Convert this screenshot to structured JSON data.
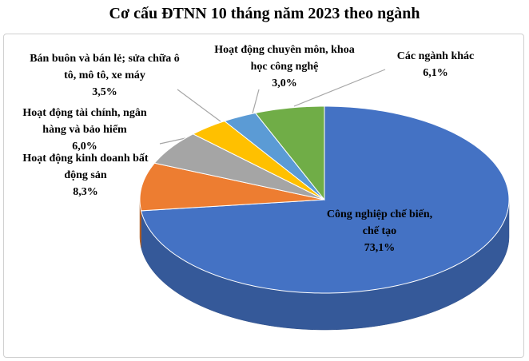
{
  "chart_data": {
    "type": "pie",
    "title": "Cơ cấu ĐTNN 10 tháng năm 2023 theo ngành",
    "categories": [
      "Công nghiệp chế biến, chế tạo",
      "Hoạt động kinh doanh bất động sản",
      "Hoạt động tài chính, ngân hàng và bảo hiểm",
      "Bán buôn và bán lẻ; sửa chữa ô tô, mô tô, xe máy",
      "Hoạt động chuyên môn, khoa học công nghệ",
      "Các ngành khác"
    ],
    "values": [
      73.1,
      8.3,
      6.0,
      3.5,
      3.0,
      6.1
    ],
    "value_labels": [
      "73,1%",
      "8,3%",
      "6,0%",
      "3,5%",
      "3,0%",
      "6,1%"
    ],
    "colors": [
      "#4472c4",
      "#ed7d31",
      "#a5a5a5",
      "#ffc000",
      "#5b9bd5",
      "#70ad47"
    ]
  }
}
